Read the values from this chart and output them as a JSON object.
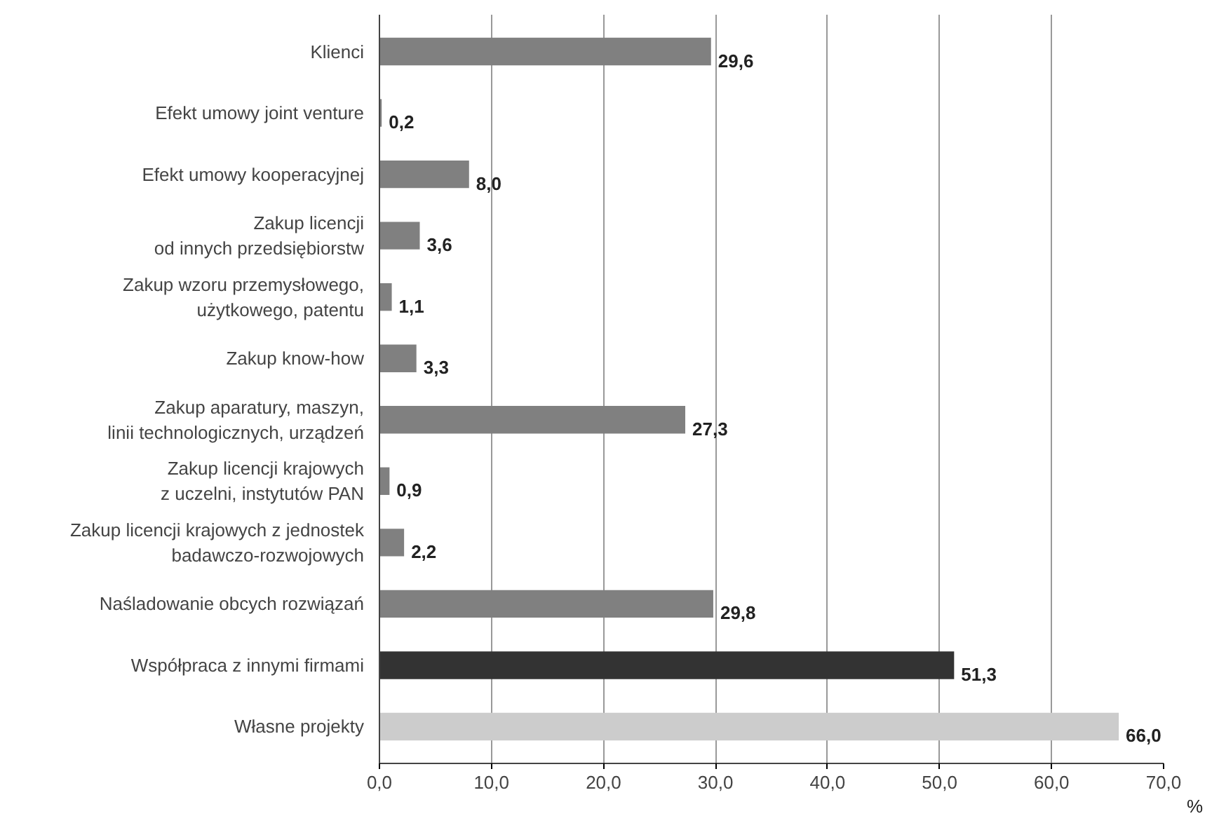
{
  "chart_data": {
    "type": "bar",
    "orientation": "horizontal",
    "xlabel": "%",
    "categories": [
      "Klienci",
      "Efekt umowy joint venture",
      "Efekt umowy kooperacyjnej",
      "Zakup licencji\nod innych przedsiębiorstw",
      "Zakup wzoru przemysłowego,\nużytkowego, patentu",
      "Zakup know-how",
      "Zakup aparatury, maszyn,\nlinii technologicznych, urządzeń",
      "Zakup licencji krajowych\nz uczelni, instytutów PAN",
      "Zakup licencji krajowych z jednostek\nbadawczo-rozwojowych",
      "Naśladowanie obcych rozwiązań",
      "Współpraca z innymi firmami",
      "Własne projekty"
    ],
    "values": [
      29.6,
      0.2,
      8.0,
      3.6,
      1.1,
      3.3,
      27.3,
      0.9,
      2.2,
      29.8,
      51.3,
      66.0
    ],
    "value_labels": [
      "29,6",
      "0,2",
      "8,0",
      "3,6",
      "1,1",
      "3,3",
      "27,3",
      "0,9",
      "2,2",
      "29,8",
      "51,3",
      "66,0"
    ],
    "colors": [
      "#808080",
      "#808080",
      "#808080",
      "#808080",
      "#808080",
      "#808080",
      "#808080",
      "#808080",
      "#808080",
      "#808080",
      "#333333",
      "#cccccc"
    ],
    "xlim": [
      0,
      70
    ],
    "xticks": [
      {
        "value": 0,
        "label": "0,0"
      },
      {
        "value": 10,
        "label": "10,0"
      },
      {
        "value": 20,
        "label": "20,0"
      },
      {
        "value": 30,
        "label": "30,0"
      },
      {
        "value": 40,
        "label": "40,0"
      },
      {
        "value": 50,
        "label": "50,0"
      },
      {
        "value": 60,
        "label": "60,0"
      },
      {
        "value": 70,
        "label": "70,0"
      }
    ],
    "grid": "x"
  }
}
